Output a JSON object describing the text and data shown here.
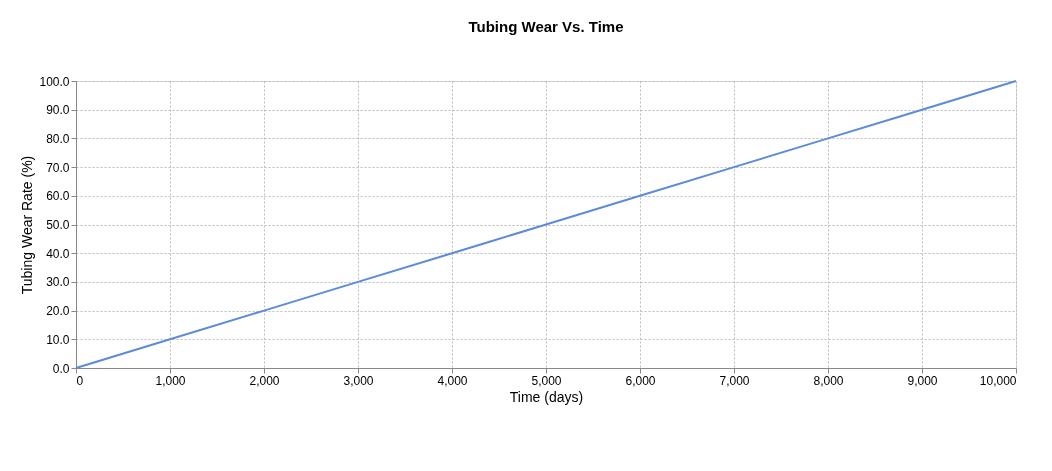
{
  "chart_data": {
    "type": "line",
    "title": "Tubing Wear Vs. Time",
    "xlabel": "Time (days)",
    "ylabel": "Tubing Wear Rate (%)",
    "x": [
      0,
      1000,
      2000,
      3000,
      4000,
      4400,
      5000,
      5600,
      6000,
      7000,
      7200,
      7600,
      8000,
      8800,
      9000,
      10000
    ],
    "series": [
      {
        "color": "#5b8bd9",
        "values": [
          0,
          10,
          20,
          30,
          40,
          44,
          50,
          56,
          60,
          70,
          72,
          76,
          80,
          88,
          90,
          100
        ]
      }
    ],
    "xlim": [
      0,
      10000
    ],
    "ylim": [
      0,
      100
    ],
    "xticks": [
      0,
      {
        "value": 1000,
        "label": "1,000"
      },
      {
        "value": 2000,
        "label": "2,000"
      },
      {
        "value": 3000,
        "label": "3,000"
      },
      {
        "value": 4000,
        "label": "4,000"
      },
      {
        "value": 5000,
        "label": "5,000"
      },
      {
        "value": 6000,
        "label": "6,000"
      },
      {
        "value": 7000,
        "label": "7,000"
      },
      {
        "value": 8000,
        "label": "8,000"
      },
      {
        "value": 9000,
        "label": "9,000"
      },
      {
        "value": 10000,
        "label": "10,000"
      }
    ],
    "yticks": [
      {
        "value": 0,
        "label": "0.0"
      },
      {
        "value": 10,
        "label": "10.0"
      },
      {
        "value": 20,
        "label": "20.0"
      },
      {
        "value": 30,
        "label": "30.0"
      },
      {
        "value": 40,
        "label": "40.0"
      },
      {
        "value": 50,
        "label": "50.0"
      },
      {
        "value": 60,
        "label": "60.0"
      },
      {
        "value": 70,
        "label": "70.0"
      },
      {
        "value": 80,
        "label": "80.0"
      },
      {
        "value": 90,
        "label": "90.0"
      },
      {
        "value": 100,
        "label": "100.0"
      }
    ],
    "grid": true,
    "marker": "none",
    "line_style": "solid"
  }
}
